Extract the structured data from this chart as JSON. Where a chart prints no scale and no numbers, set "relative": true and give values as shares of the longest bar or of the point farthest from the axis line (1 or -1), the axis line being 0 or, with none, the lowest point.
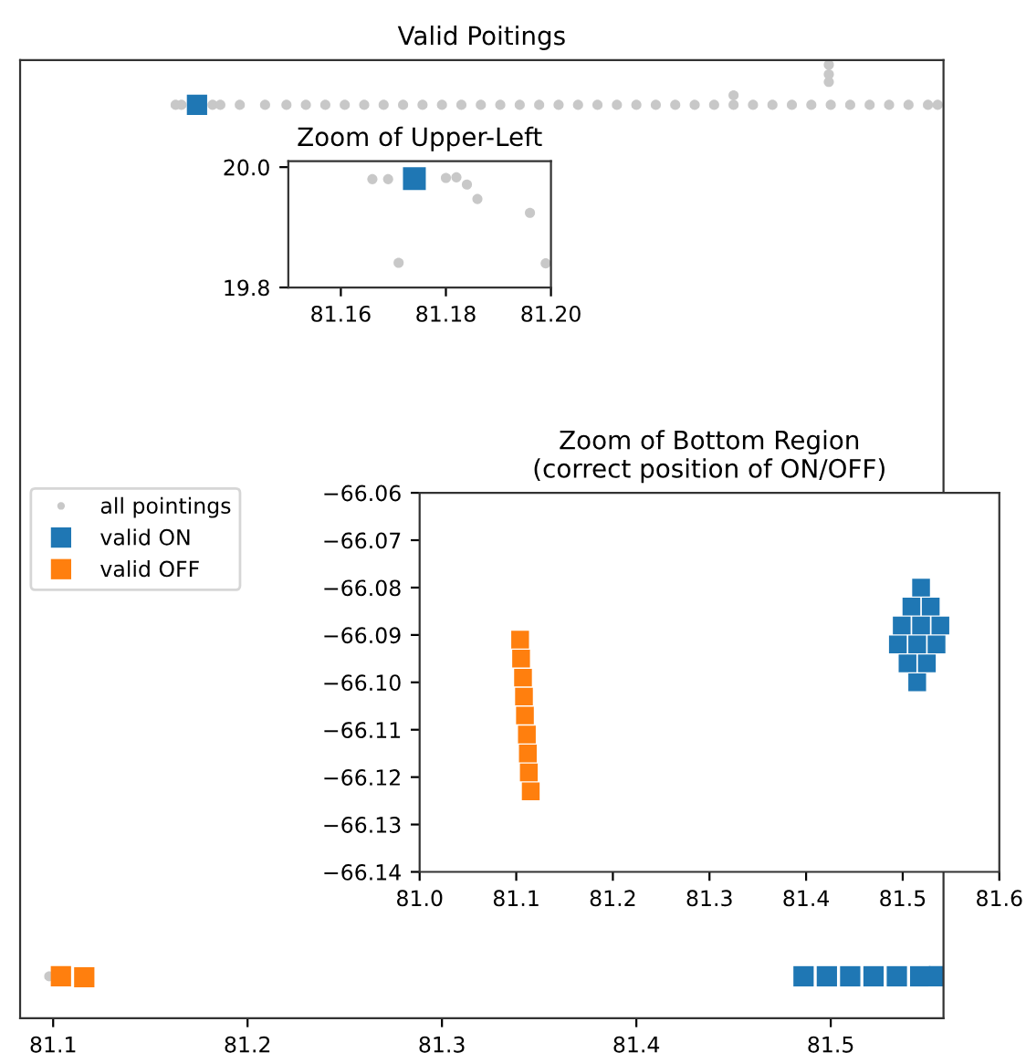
{
  "chart_data": [
    {
      "type": "scatter",
      "title": "Valid Poitings",
      "legend": "left",
      "tick_labels": "x",
      "relative": true,
      "xlim": [
        81.083,
        81.558
      ],
      "xticks": [
        81.1,
        81.2,
        81.3,
        81.4,
        81.5
      ],
      "series": [
        {
          "name": "all pointings",
          "color": "#c8c8c8",
          "marker": "circle",
          "x": [
            81.163,
            81.166,
            81.182,
            81.186,
            81.196,
            81.209,
            81.22,
            81.23,
            81.24,
            81.25,
            81.26,
            81.27,
            81.28,
            81.29,
            81.3,
            81.31,
            81.32,
            81.33,
            81.34,
            81.35,
            81.36,
            81.37,
            81.38,
            81.39,
            81.4,
            81.41,
            81.42,
            81.43,
            81.44,
            81.45,
            81.45,
            81.46,
            81.47,
            81.48,
            81.49,
            81.499,
            81.499,
            81.499,
            81.5,
            81.51,
            81.52,
            81.53,
            81.54,
            81.55,
            81.555,
            81.098
          ],
          "values": [
            0.958,
            0.958,
            0.958,
            0.958,
            0.958,
            0.958,
            0.958,
            0.958,
            0.958,
            0.958,
            0.958,
            0.958,
            0.958,
            0.958,
            0.958,
            0.958,
            0.958,
            0.958,
            0.958,
            0.958,
            0.958,
            0.958,
            0.958,
            0.958,
            0.958,
            0.958,
            0.958,
            0.958,
            0.958,
            0.958,
            0.968,
            0.958,
            0.958,
            0.958,
            0.958,
            0.982,
            0.99,
            1.0,
            0.958,
            0.958,
            0.958,
            0.958,
            0.958,
            0.958,
            0.958,
            0.044
          ]
        },
        {
          "name": "valid ON",
          "color": "#1f77b4",
          "marker": "square",
          "x": [
            81.174,
            81.486,
            81.498,
            81.51,
            81.522,
            81.534,
            81.546,
            81.556
          ],
          "values": [
            0.958,
            0.044,
            0.044,
            0.044,
            0.044,
            0.044,
            0.044,
            0.044
          ]
        },
        {
          "name": "valid OFF",
          "color": "#ff7f0e",
          "marker": "square",
          "x": [
            81.104,
            81.116
          ],
          "values": [
            0.044,
            0.043
          ]
        }
      ]
    },
    {
      "type": "scatter",
      "title": "Zoom of Upper-Left",
      "xlim": [
        81.15,
        81.2
      ],
      "ylim": [
        19.8,
        20.01
      ],
      "xticks": [
        81.16,
        81.18,
        {
          "value": 81.2,
          "label": "81.20"
        }
      ],
      "yticks": [
        19.8,
        {
          "value": 20.0,
          "label": "20.0"
        }
      ],
      "series": [
        {
          "color": "#c8c8c8",
          "marker": "circle",
          "x": [
            81.166,
            81.169,
            81.18,
            81.182,
            81.184,
            81.186,
            81.196,
            81.171,
            81.199
          ],
          "values": [
            19.98,
            19.98,
            19.982,
            19.983,
            19.971,
            19.947,
            19.924,
            19.841,
            19.84
          ]
        },
        {
          "color": "#1f77b4",
          "marker": "square",
          "x": [
            81.174
          ],
          "values": [
            19.981
          ]
        }
      ]
    },
    {
      "type": "scatter",
      "title": "Zoom of Bottom Region\n(correct position of ON/OFF)",
      "xlim": [
        81.0,
        81.6
      ],
      "ylim": [
        -66.14,
        -66.06
      ],
      "xticks": [
        {
          "value": 81.0,
          "label": "81.0"
        },
        81.1,
        81.2,
        81.3,
        81.4,
        81.5,
        81.6
      ],
      "yticks": [
        {
          "value": -66.14,
          "label": "−66.14"
        },
        {
          "value": -66.13,
          "label": "−66.13"
        },
        {
          "value": -66.12,
          "label": "−66.12"
        },
        {
          "value": -66.11,
          "label": "−66.11"
        },
        {
          "value": -66.1,
          "label": "−66.10"
        },
        {
          "value": -66.09,
          "label": "−66.09"
        },
        {
          "value": -66.08,
          "label": "−66.08"
        },
        {
          "value": -66.07,
          "label": "−66.07"
        },
        {
          "value": -66.06,
          "label": "−66.06"
        }
      ],
      "series": [
        {
          "color": "#1f77b4",
          "marker": "square",
          "x": [
            81.519,
            81.509,
            81.529,
            81.499,
            81.519,
            81.539,
            81.495,
            81.515,
            81.535,
            81.505,
            81.525,
            81.515
          ],
          "values": [
            -66.08,
            -66.084,
            -66.084,
            -66.088,
            -66.088,
            -66.088,
            -66.092,
            -66.092,
            -66.092,
            -66.096,
            -66.096,
            -66.1
          ]
        },
        {
          "color": "#ff7f0e",
          "marker": "square",
          "x": [
            81.104,
            81.105,
            81.107,
            81.108,
            81.109,
            81.111,
            81.112,
            81.113,
            81.115
          ],
          "values": [
            -66.091,
            -66.095,
            -66.099,
            -66.103,
            -66.107,
            -66.111,
            -66.115,
            -66.119,
            -66.123
          ]
        }
      ]
    }
  ]
}
